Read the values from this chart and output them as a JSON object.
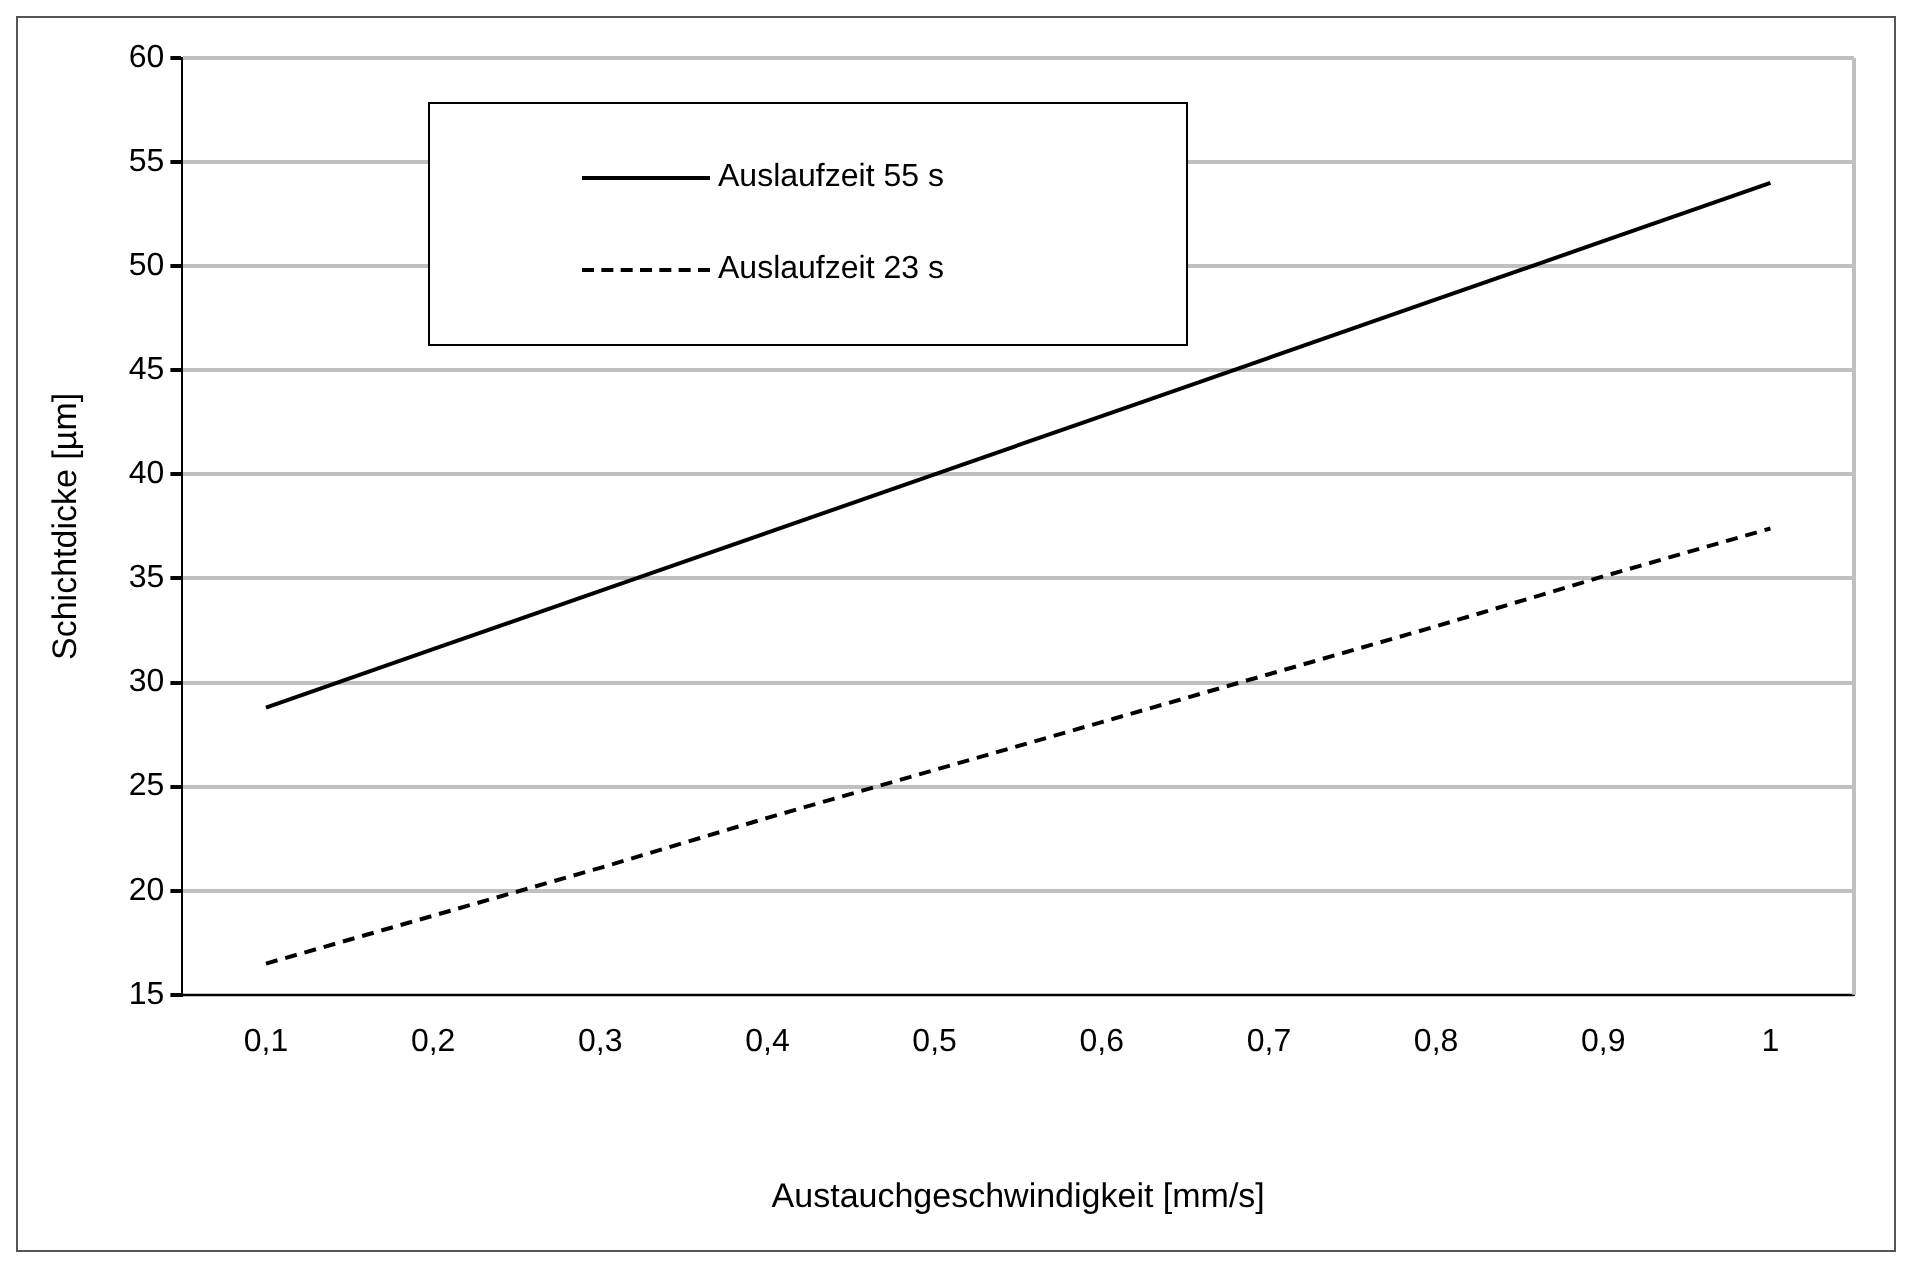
{
  "chart_data": {
    "type": "line",
    "xlabel": "Austauchgeschwindigkeit [mm/s]",
    "ylabel": "Schichtdicke [µm]",
    "categories": [
      "0,1",
      "0,2",
      "0,3",
      "0,4",
      "0,5",
      "0,6",
      "0,7",
      "0,8",
      "0,9",
      "1"
    ],
    "series": [
      {
        "name": "Auslaufzeit 55 s",
        "color": "#000000",
        "line_style": "solid",
        "values": [
          28.8,
          31.6,
          34.4,
          37.2,
          40.0,
          42.8,
          45.6,
          48.4,
          51.2,
          54.0
        ]
      },
      {
        "name": "Auslaufzeit 23 s",
        "color": "#000000",
        "line_style": "dashed",
        "values": [
          16.5,
          18.8,
          21.1,
          23.5,
          25.8,
          28.1,
          30.4,
          32.7,
          35.1,
          37.4
        ]
      }
    ],
    "ylim": [
      15,
      60
    ],
    "yticks": [
      15,
      20,
      25,
      30,
      35,
      40,
      45,
      50,
      55,
      60
    ],
    "grid": "y",
    "legend": "top left",
    "marker": "none"
  }
}
